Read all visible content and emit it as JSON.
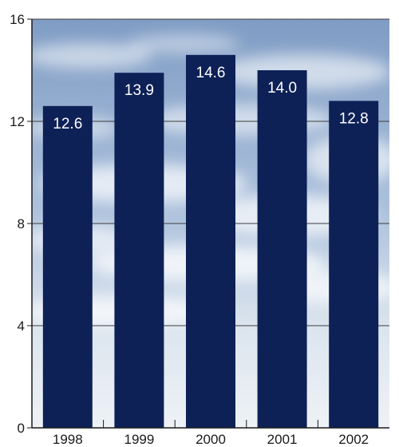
{
  "chart_data": {
    "type": "bar",
    "title": "",
    "xlabel": "",
    "ylabel": "",
    "categories": [
      "1998",
      "1999",
      "2000",
      "2001",
      "2002"
    ],
    "values": [
      12.6,
      13.9,
      14.6,
      14.0,
      12.8
    ],
    "value_labels": [
      "12.6",
      "13.9",
      "14.6",
      "14.0",
      "12.8"
    ],
    "ylim": [
      0,
      16
    ],
    "yticks": [
      0,
      4,
      8,
      12,
      16
    ],
    "ytick_labels": [
      "0",
      "4",
      "8",
      "12",
      "16"
    ],
    "grid": true,
    "background": "sky-with-clouds",
    "colors": {
      "bar": "#0d2157",
      "value_label": "#ffffff",
      "grid": "#3d3d3d",
      "axis": "#1a1a1a",
      "sky_top": "#7f9cc4",
      "sky_bottom": "#eef2f6"
    }
  }
}
